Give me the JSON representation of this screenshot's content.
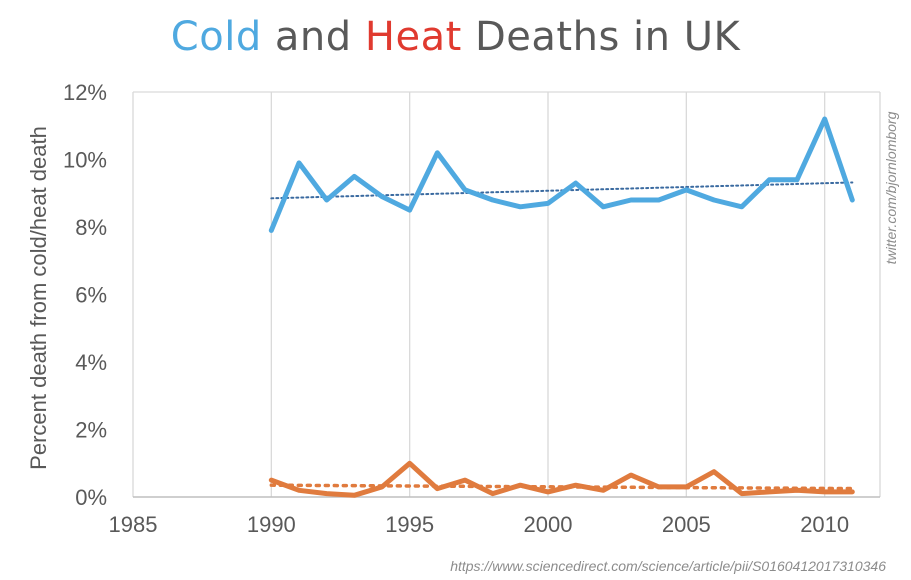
{
  "title": {
    "part1": "Cold",
    "part2": " and ",
    "part3": "Heat",
    "part4": " Deaths in UK"
  },
  "colors": {
    "cold": "#4FA9E0",
    "heat": "#E07B3E",
    "title_gray": "#595959",
    "title_red": "#E03A2F",
    "cold_trend": "#3A6AA0",
    "grid": "#d9d9d9"
  },
  "credit": "twitter.com/bjornlomborg",
  "source_url": "https://www.sciencedirect.com/science/article/pii/S0160412017310346",
  "chart_data": {
    "type": "line",
    "title": "Cold and Heat Deaths in UK",
    "xlabel": "",
    "ylabel": "Percent death from cold/heat death",
    "xlim": [
      1985,
      2012
    ],
    "ylim": [
      0,
      12
    ],
    "x_ticks": [
      1985,
      1990,
      1995,
      2000,
      2005,
      2010
    ],
    "x_tick_labels": [
      "1985",
      "1990",
      "1995",
      "2000",
      "2005",
      "2010"
    ],
    "y_ticks": [
      0,
      2,
      4,
      6,
      8,
      10,
      12
    ],
    "y_tick_labels": [
      "0%",
      "2%",
      "4%",
      "6%",
      "8%",
      "10%",
      "12%"
    ],
    "grid": "vertical",
    "x": [
      1990,
      1991,
      1992,
      1993,
      1994,
      1995,
      1996,
      1997,
      1998,
      1999,
      2000,
      2001,
      2002,
      2003,
      2004,
      2005,
      2006,
      2007,
      2008,
      2009,
      2010,
      2011
    ],
    "series": [
      {
        "name": "Cold",
        "values": [
          7.9,
          9.9,
          8.8,
          9.5,
          8.9,
          8.5,
          10.2,
          9.1,
          8.8,
          8.6,
          8.7,
          9.3,
          8.6,
          8.8,
          8.8,
          9.1,
          8.8,
          8.6,
          9.4,
          9.4,
          11.2,
          8.8
        ],
        "trend": [
          8.85,
          9.32
        ]
      },
      {
        "name": "Heat",
        "values": [
          0.5,
          0.2,
          0.1,
          0.05,
          0.3,
          1.0,
          0.25,
          0.5,
          0.1,
          0.35,
          0.15,
          0.35,
          0.2,
          0.65,
          0.3,
          0.3,
          0.75,
          0.1,
          0.15,
          0.2,
          0.15,
          0.15
        ],
        "trend": [
          0.35,
          0.25
        ]
      }
    ]
  }
}
